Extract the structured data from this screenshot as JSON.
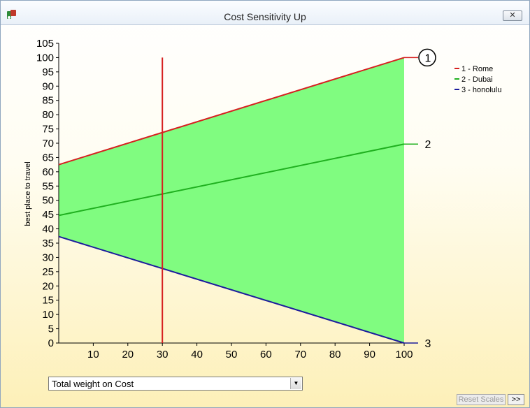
{
  "window": {
    "title": "Cost Sensitivity Up"
  },
  "controls": {
    "close_label": "✕",
    "dropdown_value": "Total weight on Cost",
    "reset_label": "Reset Scales",
    "more_label": ">>"
  },
  "colors": {
    "fill": "#80fc80",
    "rome": "#d62020",
    "dubai": "#1fb01f",
    "honolulu": "#1c1c9c",
    "marker": "#d62020"
  },
  "chart_data": {
    "type": "line",
    "ylabel": "best place to travel",
    "xlabel": "",
    "xlim": [
      0,
      100
    ],
    "ylim": [
      0,
      105
    ],
    "xticks": [
      10,
      20,
      30,
      40,
      50,
      60,
      70,
      80,
      90,
      100
    ],
    "yticks": [
      0,
      5,
      10,
      15,
      20,
      25,
      30,
      35,
      40,
      45,
      50,
      55,
      60,
      65,
      70,
      75,
      80,
      85,
      90,
      95,
      100,
      105
    ],
    "current_weight": 30,
    "series": [
      {
        "name": "1 - Rome",
        "end_label": "1",
        "highlighted": true,
        "x": [
          0,
          100
        ],
        "values": [
          62.5,
          100
        ]
      },
      {
        "name": "2 - Dubai",
        "end_label": "2",
        "highlighted": false,
        "x": [
          0,
          100
        ],
        "values": [
          44.7,
          69.7
        ]
      },
      {
        "name": "3 - honolulu",
        "end_label": "3",
        "highlighted": false,
        "x": [
          0,
          100
        ],
        "values": [
          37.3,
          0
        ]
      }
    ],
    "legend": "top-right"
  }
}
